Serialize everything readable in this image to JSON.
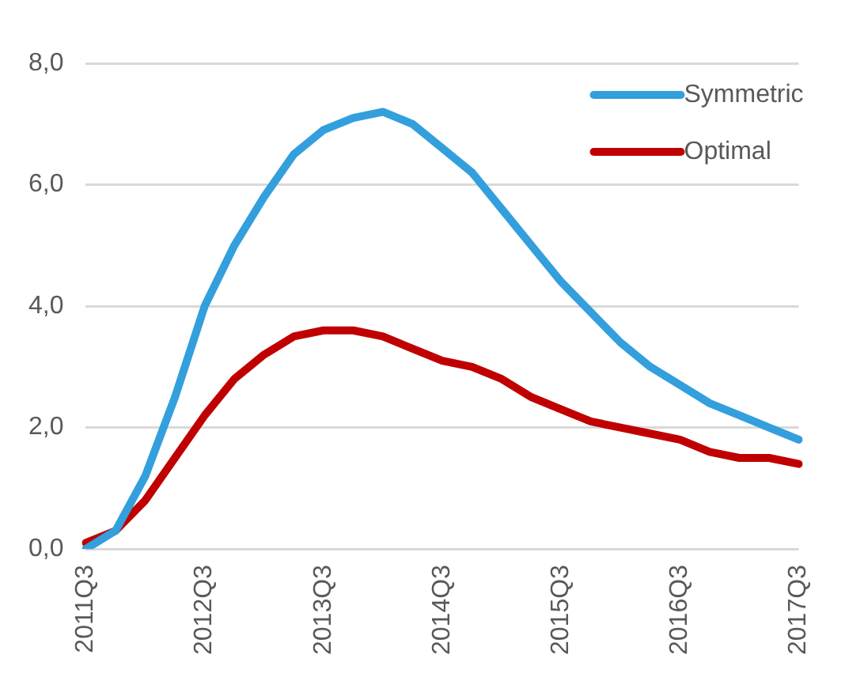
{
  "chart_data": {
    "type": "line",
    "categories": [
      "2011Q3",
      null,
      null,
      null,
      "2012Q3",
      null,
      null,
      null,
      "2013Q3",
      null,
      null,
      null,
      "2014Q3",
      null,
      null,
      null,
      "2015Q3",
      null,
      null,
      null,
      "2016Q3",
      null,
      null,
      null,
      "2017Q3"
    ],
    "series": [
      {
        "name": "Symmetric",
        "color": "#339fdd",
        "values": [
          0.0,
          0.3,
          1.2,
          2.5,
          4.0,
          5.0,
          5.8,
          6.5,
          6.9,
          7.1,
          7.2,
          7.0,
          6.6,
          6.2,
          5.6,
          5.0,
          4.4,
          3.9,
          3.4,
          3.0,
          2.7,
          2.4,
          2.2,
          2.0,
          1.8
        ]
      },
      {
        "name": "Optimal",
        "color": "#c00000",
        "values": [
          0.1,
          0.3,
          0.8,
          1.5,
          2.2,
          2.8,
          3.2,
          3.5,
          3.6,
          3.6,
          3.5,
          3.3,
          3.1,
          3.0,
          2.8,
          2.5,
          2.3,
          2.1,
          2.0,
          1.9,
          1.8,
          1.6,
          1.5,
          1.5,
          1.4
        ]
      }
    ],
    "ylim": [
      0,
      8
    ],
    "yticks": [
      {
        "value": 0,
        "label": "0,0"
      },
      {
        "value": 2,
        "label": "2,0"
      },
      {
        "value": 4,
        "label": "4,0"
      },
      {
        "value": 6,
        "label": "6,0"
      },
      {
        "value": 8,
        "label": "8,0"
      }
    ],
    "grid": "y",
    "legend": "top right",
    "marker": "none",
    "line_style": "solid"
  }
}
